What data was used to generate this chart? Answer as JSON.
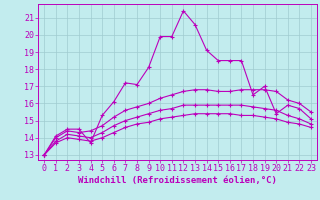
{
  "xlabel": "Windchill (Refroidissement éolien,°C)",
  "bg_color": "#c2ecee",
  "grid_color": "#a0ccd0",
  "line_color": "#bb00bb",
  "xlim": [
    -0.5,
    23.5
  ],
  "ylim": [
    12.7,
    21.8
  ],
  "xticks": [
    0,
    1,
    2,
    3,
    4,
    5,
    6,
    7,
    8,
    9,
    10,
    11,
    12,
    13,
    14,
    15,
    16,
    17,
    18,
    19,
    20,
    21,
    22,
    23
  ],
  "yticks": [
    13,
    14,
    15,
    16,
    17,
    18,
    19,
    20,
    21
  ],
  "curves": [
    [
      13.0,
      14.1,
      14.5,
      14.5,
      13.7,
      15.3,
      16.1,
      17.2,
      17.1,
      18.1,
      19.9,
      19.9,
      21.4,
      20.6,
      19.1,
      18.5,
      18.5,
      18.5,
      16.5,
      17.0,
      15.4,
      15.9,
      15.7,
      15.1
    ],
    [
      13.0,
      14.0,
      14.4,
      14.3,
      14.4,
      14.7,
      15.2,
      15.6,
      15.8,
      16.0,
      16.3,
      16.5,
      16.7,
      16.8,
      16.8,
      16.7,
      16.7,
      16.8,
      16.8,
      16.8,
      16.7,
      16.2,
      16.0,
      15.5
    ],
    [
      13.0,
      13.8,
      14.2,
      14.1,
      14.0,
      14.3,
      14.7,
      15.0,
      15.2,
      15.4,
      15.6,
      15.7,
      15.9,
      15.9,
      15.9,
      15.9,
      15.9,
      15.9,
      15.8,
      15.7,
      15.6,
      15.3,
      15.1,
      14.8
    ],
    [
      13.0,
      13.7,
      14.0,
      13.9,
      13.8,
      14.0,
      14.3,
      14.6,
      14.8,
      14.9,
      15.1,
      15.2,
      15.3,
      15.4,
      15.4,
      15.4,
      15.4,
      15.3,
      15.3,
      15.2,
      15.1,
      14.9,
      14.8,
      14.6
    ]
  ],
  "marker": "+",
  "marker_size": 3,
  "line_width": 0.8,
  "tick_fontsize": 6.0,
  "xlabel_fontsize": 6.5
}
